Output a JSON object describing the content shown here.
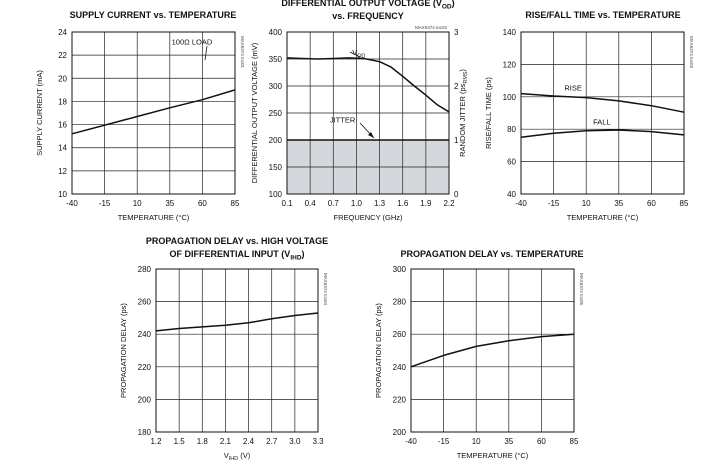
{
  "chart_data": [
    {
      "type": "line",
      "title": "SUPPLY CURRENT vs. TEMPERATURE",
      "xlabel": "TEMPERATURE (°C)",
      "ylabel": "SUPPLY CURRENT (mA)",
      "xlim": [
        -40,
        85
      ],
      "ylim": [
        10,
        24
      ],
      "x_ticks": [
        "-40",
        "-15",
        "10",
        "35",
        "60",
        "85"
      ],
      "y_ticks": [
        "10",
        "12",
        "14",
        "16",
        "18",
        "20",
        "22",
        "24"
      ],
      "code": "MAX6374 toc01",
      "annotations": [
        {
          "text": "100Ω LOAD",
          "x": 52,
          "y": 22.9
        }
      ],
      "series": [
        {
          "x": [
            -40,
            -15,
            10,
            35,
            60,
            85
          ],
          "y": [
            15.2,
            15.95,
            16.7,
            17.45,
            18.15,
            19.0
          ]
        }
      ],
      "grid": true
    },
    {
      "type": "line",
      "title_parts": [
        "DIFFERENTIAL OUTPUT VOLTAGE (V",
        "OD",
        ")"
      ],
      "title_line2": "vs. FREQUENCY",
      "xlabel": "FREQUENCY (GHz)",
      "ylabel": "DIFFERENTIAL OUTPUT VOLTAGE (mV)",
      "ylabel_right_parts": [
        "RANDOM JITTER (ps",
        "RMS",
        ")"
      ],
      "xlim": [
        0.1,
        2.2
      ],
      "ylim": [
        100,
        400
      ],
      "ylim_right": [
        0,
        3
      ],
      "x_ticks": [
        "0.1",
        "0.4",
        "0.7",
        "1.0",
        "1.3",
        "1.6",
        "1.9",
        "2.2"
      ],
      "y_ticks": [
        "100",
        "150",
        "200",
        "250",
        "300",
        "350",
        "400"
      ],
      "y_ticks_right": [
        "0",
        "1",
        "2",
        "3"
      ],
      "code": "MAX6374 toc02",
      "annotations": [
        {
          "text_parts": [
            "V",
            "OD"
          ],
          "x": 1.03,
          "y": 357
        },
        {
          "text": "JITTER",
          "x": 0.82,
          "y": 232
        }
      ],
      "series": [
        {
          "name": "VOD",
          "x": [
            0.1,
            0.3,
            0.5,
            0.7,
            0.9,
            1.1,
            1.3,
            1.45,
            1.6,
            1.75,
            1.9,
            2.05,
            2.2
          ],
          "y": [
            352,
            351,
            350,
            351,
            352,
            351,
            345,
            335,
            318,
            300,
            283,
            265,
            252
          ]
        },
        {
          "name": "JITTER",
          "x": [
            0.1,
            2.2
          ],
          "y_right": [
            1.0,
            1.0
          ]
        }
      ],
      "shaded_region": {
        "y_right": [
          0,
          1
        ],
        "color": "#d4d7dc"
      },
      "grid": true
    },
    {
      "type": "line",
      "title": "RISE/FALL TIME vs. TEMPERATURE",
      "xlabel": "TEMPERATURE (°C)",
      "ylabel": "RISE/FALL TIME (ps)",
      "xlim": [
        -40,
        85
      ],
      "ylim": [
        40,
        140
      ],
      "x_ticks": [
        "-40",
        "-15",
        "10",
        "35",
        "60",
        "85"
      ],
      "y_ticks": [
        "40",
        "60",
        "80",
        "100",
        "120",
        "140"
      ],
      "code": "MAX6374 toc03",
      "annotations": [
        {
          "text": "RISE",
          "x": 0,
          "y": 104
        },
        {
          "text": "FALL",
          "x": 22,
          "y": 83
        }
      ],
      "series": [
        {
          "name": "RISE",
          "x": [
            -40,
            -15,
            10,
            35,
            60,
            85
          ],
          "y": [
            102,
            100.5,
            99.5,
            97.5,
            94.5,
            90.5
          ]
        },
        {
          "name": "FALL",
          "x": [
            -40,
            -15,
            10,
            35,
            60,
            85
          ],
          "y": [
            75,
            77.5,
            79,
            79.5,
            78.5,
            76.5
          ]
        }
      ],
      "grid": true
    },
    {
      "type": "line",
      "title": "PROPAGATION DELAY vs. HIGH VOLTAGE",
      "title_line2_parts": [
        "OF DIFFERENTIAL INPUT (V",
        "IHD",
        ")"
      ],
      "xlabel_parts": [
        "V",
        "IHD",
        " (V)"
      ],
      "ylabel": "PROPAGATION DELAY (ps)",
      "xlim": [
        1.2,
        3.3
      ],
      "ylim": [
        180,
        280
      ],
      "x_ticks": [
        "1.2",
        "1.5",
        "1.8",
        "2.1",
        "2.4",
        "2.7",
        "3.0",
        "3.3"
      ],
      "y_ticks": [
        "180",
        "200",
        "220",
        "240",
        "260",
        "280"
      ],
      "code": "MAX6374 toc04",
      "series": [
        {
          "x": [
            1.2,
            1.5,
            1.8,
            2.1,
            2.4,
            2.7,
            3.0,
            3.3
          ],
          "y": [
            242,
            243.5,
            244.5,
            245.5,
            247,
            249.5,
            251.5,
            253
          ]
        }
      ],
      "grid": true
    },
    {
      "type": "line",
      "title": "PROPAGATION DELAY vs. TEMPERATURE",
      "xlabel": "TEMPERATURE (°C)",
      "ylabel": "PROPAGATION DELAY (ps)",
      "xlim": [
        -40,
        85
      ],
      "ylim": [
        200,
        300
      ],
      "x_ticks": [
        "-40",
        "-15",
        "10",
        "35",
        "60",
        "85"
      ],
      "y_ticks": [
        "200",
        "220",
        "240",
        "260",
        "280",
        "300"
      ],
      "code": "MAX6374 toc05",
      "series": [
        {
          "x": [
            -40,
            -15,
            10,
            35,
            60,
            85
          ],
          "y": [
            240,
            247,
            252.5,
            256,
            258.5,
            260
          ]
        }
      ],
      "grid": true
    }
  ]
}
